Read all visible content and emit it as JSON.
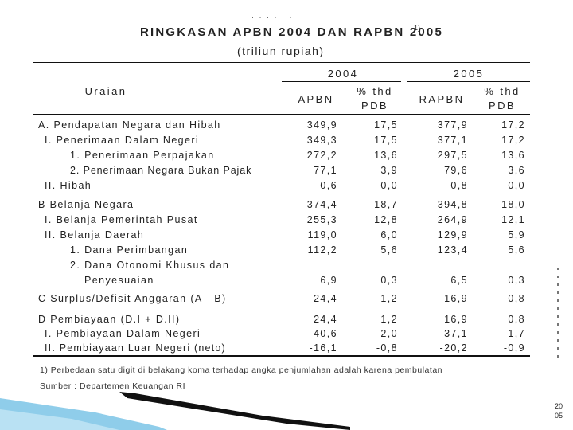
{
  "document": {
    "title": "RINGKASAN APBN 2004 DAN RAPBN 2005",
    "title_note": "1)",
    "subtitle": "(triliun rupiah)",
    "header": {
      "uraian": "Uraian",
      "year_2004": "2004",
      "year_2005": "2005",
      "apbn": "APBN",
      "thd_pdb_2004_line1": "% thd",
      "thd_pdb_2004_line2": "PDB",
      "rapbn": "RAPBN",
      "thd_pdb_2005_line1": "% thd",
      "thd_pdb_2005_line2": "PDB"
    },
    "rows": [
      {
        "label": "A. Pendapatan Negara dan Hibah",
        "indent": 0,
        "apbn": "349,9",
        "pdb04": "17,5",
        "rapbn": "377,9",
        "pdb05": "17,2"
      },
      {
        "label": "I.   Penerimaan Dalam Negeri",
        "indent": 1,
        "apbn": "349,3",
        "pdb04": "17,5",
        "rapbn": "377,1",
        "pdb05": "17,2"
      },
      {
        "label": "1. Penerimaan Perpajakan",
        "indent": 2,
        "apbn": "272,2",
        "pdb04": "13,6",
        "rapbn": "297,5",
        "pdb05": "13,6"
      },
      {
        "label": "2. Penerimaan Negara Bukan Pajak",
        "indent": 2,
        "apbn": "77,1",
        "pdb04": "3,9",
        "rapbn": "79,6",
        "pdb05": "3,6"
      },
      {
        "label": "II.  Hibah",
        "indent": 1,
        "apbn": "0,6",
        "pdb04": "0,0",
        "rapbn": "0,8",
        "pdb05": "0,0"
      },
      {
        "label": "B Belanja Negara",
        "indent": 0,
        "apbn": "374,4",
        "pdb04": "18,7",
        "rapbn": "394,8",
        "pdb05": "18,0"
      },
      {
        "label": "I.   Belanja Pemerintah Pusat",
        "indent": 1,
        "apbn": "255,3",
        "pdb04": "12,8",
        "rapbn": "264,9",
        "pdb05": "12,1"
      },
      {
        "label": "II.  Belanja Daerah",
        "indent": 1,
        "apbn": "119,0",
        "pdb04": "6,0",
        "rapbn": "129,9",
        "pdb05": "5,9"
      },
      {
        "label": "1. Dana Perimbangan",
        "indent": 2,
        "apbn": "112,2",
        "pdb04": "5,6",
        "rapbn": "123,4",
        "pdb05": "5,6"
      },
      {
        "label": "2. Dana Otonomi Khusus dan",
        "indent": 2,
        "apbn": "",
        "pdb04": "",
        "rapbn": "",
        "pdb05": ""
      },
      {
        "label": "Penyesuaian",
        "indent": 3,
        "apbn": "6,9",
        "pdb04": "0,3",
        "rapbn": "6,5",
        "pdb05": "0,3"
      },
      {
        "label": "C Surplus/Defisit Anggaran   (A - B)",
        "indent": 0,
        "apbn": "-24,4",
        "pdb04": "-1,2",
        "rapbn": "-16,9",
        "pdb05": "-0,8"
      },
      {
        "label": "D Pembiayaan (D.I + D.II)",
        "indent": 0,
        "apbn": "24,4",
        "pdb04": "1,2",
        "rapbn": "16,9",
        "pdb05": "0,8"
      },
      {
        "label": "I.   Pembiayaan Dalam Negeri",
        "indent": 1,
        "apbn": "40,6",
        "pdb04": "2,0",
        "rapbn": "37,1",
        "pdb05": "1,7"
      },
      {
        "label": "II.  Pembiayaan Luar Negeri (neto)",
        "indent": 1,
        "apbn": "-16,1",
        "pdb04": "-0,8",
        "rapbn": "-20,2",
        "pdb05": "-0,9"
      }
    ],
    "footnote": "1) Perbedaan satu digit di belakang koma terhadap angka penjumlahan adalah karena pembulatan",
    "source": "Sumber : Departemen Keuangan RI"
  },
  "side": {
    "year_line1": "20",
    "year_line2": "05"
  },
  "colors": {
    "swoosh_dark": "#111111",
    "swoosh_light": "#8fcdea"
  }
}
